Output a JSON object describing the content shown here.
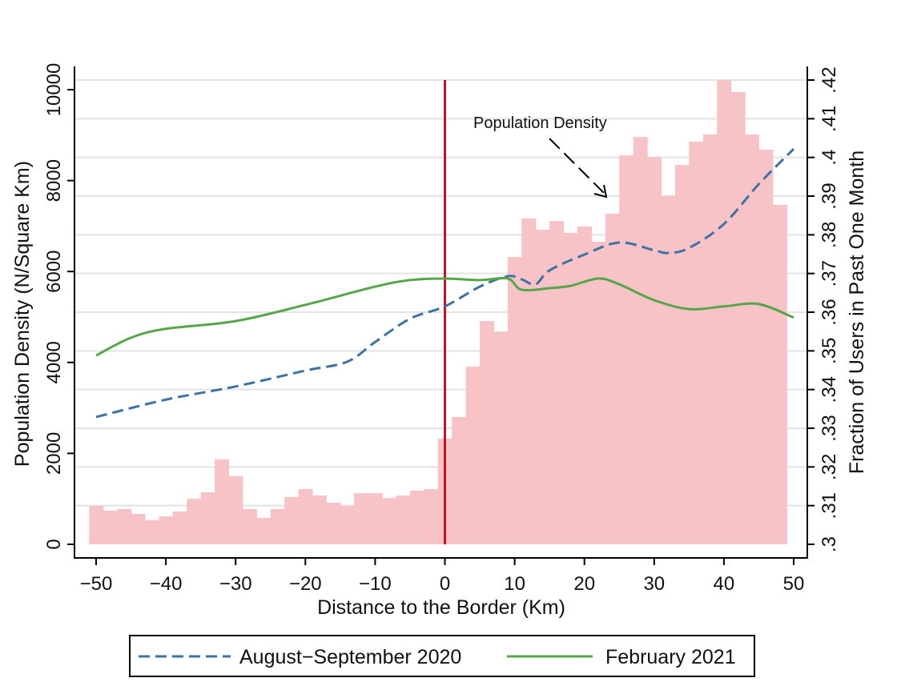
{
  "chart_data": {
    "type": "bar+line",
    "xlabel": "Distance to the Border (Km)",
    "ylabel_left": "Population Density (N/Square Km)",
    "ylabel_right": "Fraction of Users in Past One Month",
    "xlim": [
      -50,
      50
    ],
    "ylim_left": [
      0,
      10000
    ],
    "ylim_right": [
      0.3,
      0.42
    ],
    "x_ticks": [
      "−50",
      "−40",
      "−30",
      "−20",
      "−10",
      "0",
      "10",
      "20",
      "30",
      "40",
      "50"
    ],
    "y_ticks_left": [
      "0",
      "2000",
      "4000",
      "6000",
      "8000",
      "10000"
    ],
    "y_ticks_right": [
      ".3",
      ".31",
      ".32",
      ".33",
      ".34",
      ".35",
      ".36",
      ".37",
      ".38",
      ".39",
      ".4",
      ".41",
      ".42"
    ],
    "grid": true,
    "border_line": {
      "x": 0,
      "color": "#c8141e"
    },
    "annotation": {
      "text": "Population Density",
      "points_to": [
        23,
        7700
      ]
    },
    "bars": {
      "color": "#f7c3c6",
      "bin_width": 2,
      "centers": [
        -50,
        -48,
        -46,
        -44,
        -42,
        -40,
        -38,
        -36,
        -34,
        -32,
        -30,
        -28,
        -26,
        -24,
        -22,
        -20,
        -18,
        -16,
        -14,
        -12,
        -10,
        -8,
        -6,
        -4,
        -2,
        0,
        2,
        4,
        6,
        8,
        10,
        12,
        14,
        16,
        18,
        20,
        22,
        24,
        26,
        28,
        30,
        32,
        34,
        36,
        38,
        40,
        42,
        44,
        46,
        48
      ],
      "values": [
        845,
        740,
        775,
        670,
        530,
        615,
        720,
        1000,
        1145,
        1870,
        1500,
        775,
        580,
        775,
        1040,
        1215,
        1075,
        915,
        845,
        1125,
        1125,
        1020,
        1075,
        1180,
        1215,
        2325,
        2800,
        3910,
        4910,
        4680,
        6320,
        7165,
        6920,
        7110,
        6850,
        6990,
        6655,
        7270,
        8555,
        8960,
        8520,
        7660,
        8345,
        8855,
        9015,
        10210,
        9950,
        9015,
        8680,
        7465
      ]
    },
    "series": [
      {
        "name": "August−September 2020",
        "color": "#3d72a4",
        "style": "dashed",
        "x": [
          -50,
          -40,
          -30,
          -20,
          -14,
          -10,
          -5,
          0,
          5,
          9,
          11,
          13,
          15,
          20,
          25,
          30,
          32,
          35,
          40,
          45,
          50
        ],
        "y": [
          0.3329,
          0.3374,
          0.3408,
          0.3449,
          0.3472,
          0.3523,
          0.3583,
          0.3615,
          0.3666,
          0.3693,
          0.3685,
          0.3672,
          0.3708,
          0.3749,
          0.378,
          0.376,
          0.3753,
          0.3766,
          0.3828,
          0.3931,
          0.4022
        ]
      },
      {
        "name": "February 2021",
        "color": "#55a648",
        "style": "solid",
        "x": [
          -50,
          -45,
          -40,
          -30,
          -20,
          -10,
          -5,
          0,
          5,
          9,
          11,
          15,
          18,
          22,
          25,
          30,
          35,
          40,
          45,
          50
        ],
        "y": [
          0.3488,
          0.3534,
          0.3557,
          0.3577,
          0.3619,
          0.3666,
          0.3683,
          0.3687,
          0.3683,
          0.3687,
          0.3658,
          0.3662,
          0.3668,
          0.3687,
          0.3672,
          0.3631,
          0.3608,
          0.3615,
          0.3621,
          0.3586
        ]
      }
    ],
    "legend": {
      "placement": "bottom",
      "entries": [
        "August−September 2020",
        "February 2021"
      ]
    }
  }
}
